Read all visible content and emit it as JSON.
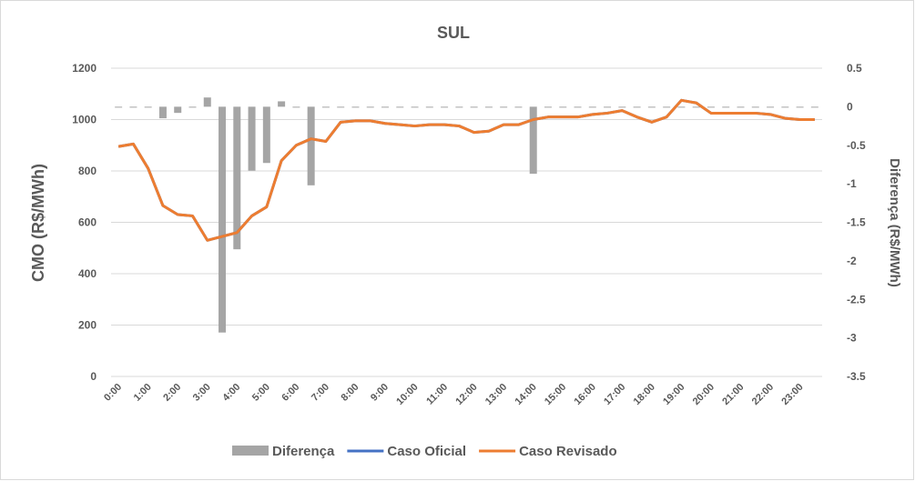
{
  "chart_data": {
    "type": "bar-line",
    "title": "SUL",
    "ylabel": "CMO (R$/MWh)",
    "y2label": "Diferença (R$/MWh)",
    "categories": [
      "0:00",
      null,
      "1:00",
      null,
      "2:00",
      null,
      "3:00",
      null,
      "4:00",
      null,
      "5:00",
      null,
      "6:00",
      null,
      "7:00",
      null,
      "8:00",
      null,
      "9:00",
      null,
      "10:00",
      null,
      "11:00",
      null,
      "12:00",
      null,
      "13:00",
      null,
      "14:00",
      null,
      "15:00",
      null,
      "16:00",
      null,
      "17:00",
      null,
      "18:00",
      null,
      "19:00",
      null,
      "20:00",
      null,
      "21:00",
      null,
      "22:00",
      null,
      "23:00",
      null
    ],
    "series": [
      {
        "name": "Diferença",
        "type": "bar",
        "axis": "y2",
        "color": "#a5a5a5",
        "values": [
          -0.01,
          0,
          0,
          -0.15,
          -0.08,
          0,
          0.12,
          -2.93,
          -1.85,
          -0.83,
          -0.73,
          0.07,
          -0.01,
          -1.02,
          -0.01,
          -0.01,
          -0.01,
          -0.01,
          -0.01,
          -0.01,
          -0.01,
          -0.01,
          -0.01,
          0,
          0,
          0,
          0,
          0,
          -0.87,
          0,
          0,
          0,
          0,
          0,
          0,
          0,
          0,
          0,
          0,
          0,
          0,
          0,
          0,
          0,
          0,
          0,
          0,
          -0.01
        ]
      },
      {
        "name": "Caso Oficial",
        "type": "line",
        "color": "#4472c4",
        "values": [
          895,
          905,
          810,
          665,
          630,
          625,
          530,
          545,
          560,
          625,
          660,
          840,
          900,
          925,
          915,
          990,
          995,
          995,
          985,
          980,
          975,
          980,
          980,
          975,
          950,
          955,
          980,
          980,
          1000,
          1010,
          1010,
          1010,
          1020,
          1025,
          1035,
          1010,
          990,
          1010,
          1075,
          1065,
          1025,
          1025,
          1025,
          1025,
          1020,
          1005,
          1000,
          1000
        ]
      },
      {
        "name": "Caso Revisado",
        "type": "line",
        "color": "#ed7d31",
        "values": [
          895,
          905,
          810,
          665,
          630,
          625,
          530,
          545,
          560,
          625,
          660,
          840,
          900,
          925,
          915,
          990,
          995,
          995,
          985,
          980,
          975,
          980,
          980,
          975,
          950,
          955,
          980,
          980,
          1000,
          1010,
          1010,
          1010,
          1020,
          1025,
          1035,
          1010,
          990,
          1010,
          1075,
          1065,
          1025,
          1025,
          1025,
          1025,
          1020,
          1005,
          1000,
          1000
        ]
      }
    ],
    "ylim": [
      0,
      1200
    ],
    "yticks": [
      0,
      200,
      400,
      600,
      800,
      1000,
      1200
    ],
    "y2lim": [
      -3.5,
      0.5
    ],
    "y2ticks": [
      -3.5,
      -3,
      -2.5,
      -2,
      -1.5,
      -1,
      -0.5,
      0,
      0.5
    ],
    "grid": true,
    "legend": "bottom"
  }
}
